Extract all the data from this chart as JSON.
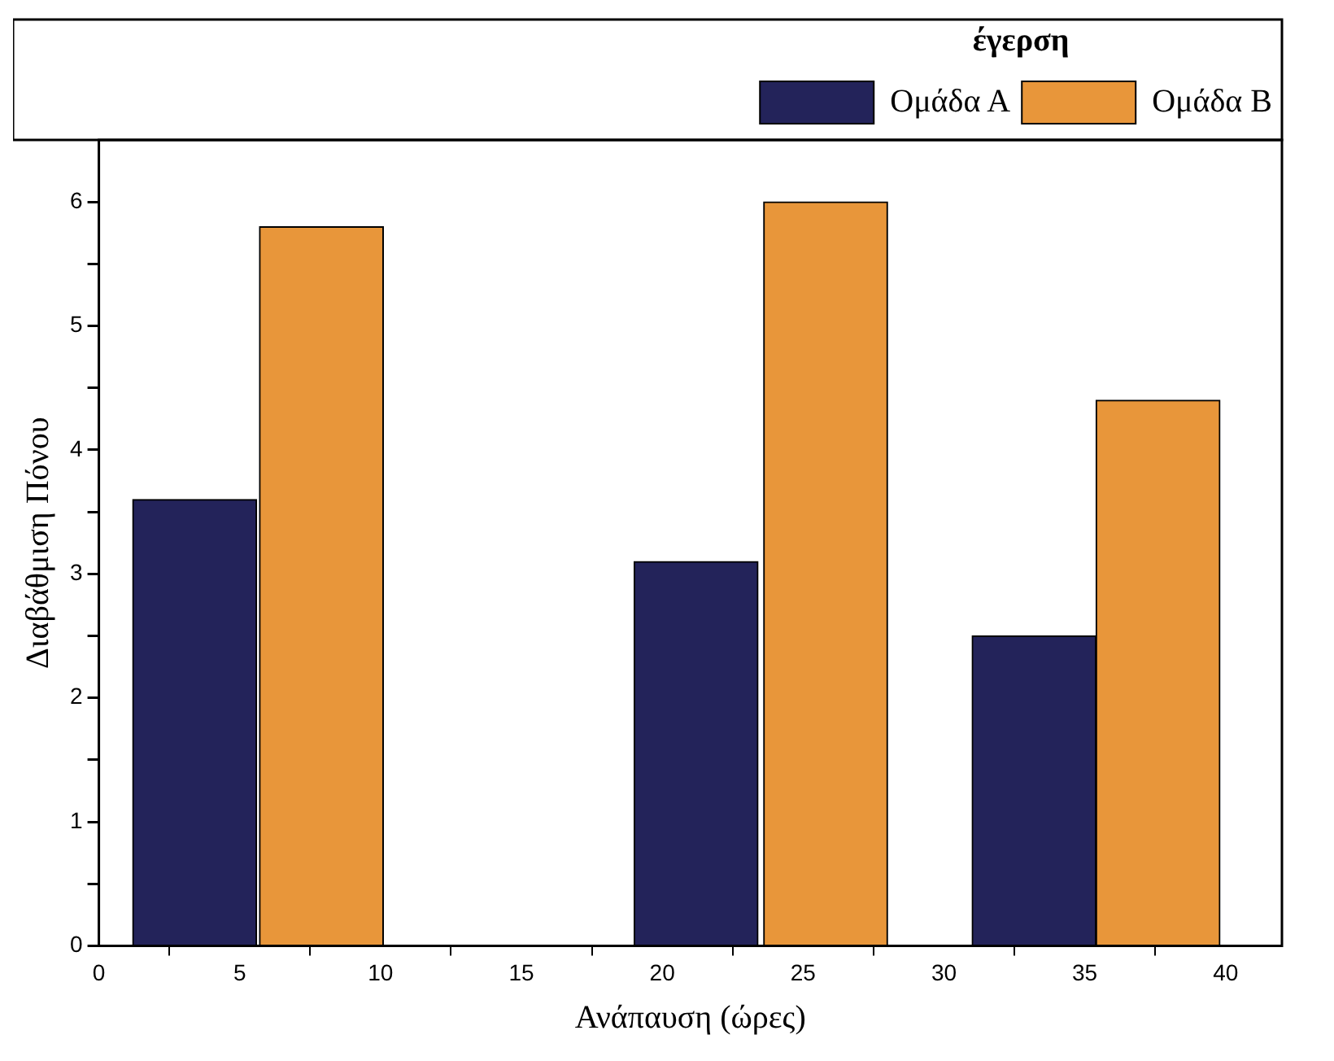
{
  "chart_data": {
    "type": "bar",
    "xlabel": "Ανάπαυση (ώρες)",
    "ylabel": "Διαβάθμιση Πόνου",
    "legend_title": "έγερση",
    "legend": "top right",
    "grid": false,
    "xlim": [
      0,
      42
    ],
    "xticks": [
      0,
      5,
      10,
      15,
      20,
      25,
      30,
      35,
      40
    ],
    "ylim": [
      0,
      6.5
    ],
    "yticks": [
      0,
      {
        "value": 0.5,
        "label": null
      },
      1,
      {
        "value": 1.5,
        "label": null
      },
      2,
      {
        "value": 2.5,
        "label": null
      },
      3,
      {
        "value": 3.5,
        "label": null
      },
      4,
      {
        "value": 4.5,
        "label": null
      },
      5,
      {
        "value": 5.5,
        "label": null
      },
      6
    ],
    "series": [
      {
        "name": "Ομάδα Α",
        "color": "#23235a",
        "x": [
          3.4,
          21.2,
          33.2
        ],
        "values": [
          3.6,
          3.1,
          2.5
        ]
      },
      {
        "name": "Ομάδα Β",
        "color": "#e8963a",
        "x": [
          7.9,
          25.8,
          37.6
        ],
        "values": [
          5.8,
          6.0,
          4.4
        ]
      }
    ]
  }
}
